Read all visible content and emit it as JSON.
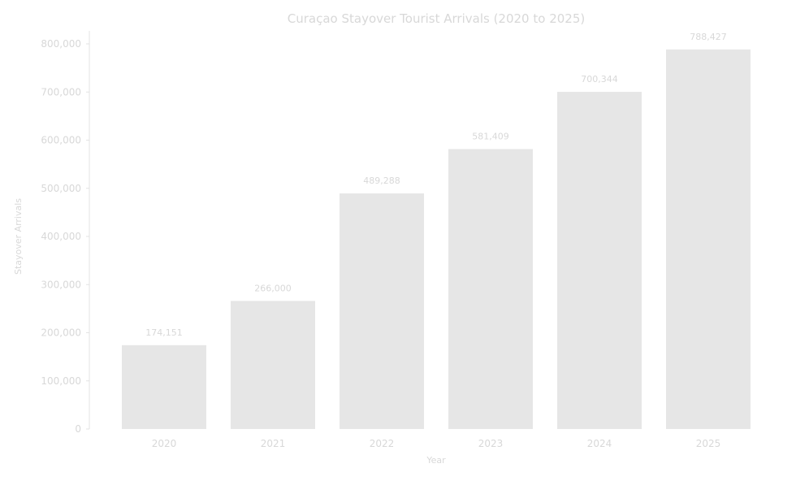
{
  "chart_data": {
    "type": "bar",
    "title": "Curaçao Stayover Tourist Arrivals (2020 to 2025)",
    "xlabel": "Year",
    "ylabel": "Stayover Arrivals",
    "categories": [
      "2020",
      "2021",
      "2022",
      "2023",
      "2024",
      "2025"
    ],
    "values": [
      174151,
      266000,
      489288,
      581409,
      700344,
      788427
    ],
    "data_labels": [
      "174,151",
      "266,000",
      "489,288",
      "581,409",
      "700,344",
      "788,427"
    ],
    "ylim": [
      0,
      800000
    ],
    "yticks": [
      0,
      100000,
      200000,
      300000,
      400000,
      500000,
      600000,
      700000,
      800000
    ],
    "ytick_labels": [
      "0",
      "100,000",
      "200,000",
      "300,000",
      "400,000",
      "500,000",
      "600,000",
      "700,000",
      "800,000"
    ],
    "grid": false,
    "legend": "none",
    "colors": {
      "bar": "#e6e6e6",
      "text": "#d8d8d8",
      "axis": "#e3e3e3"
    }
  }
}
